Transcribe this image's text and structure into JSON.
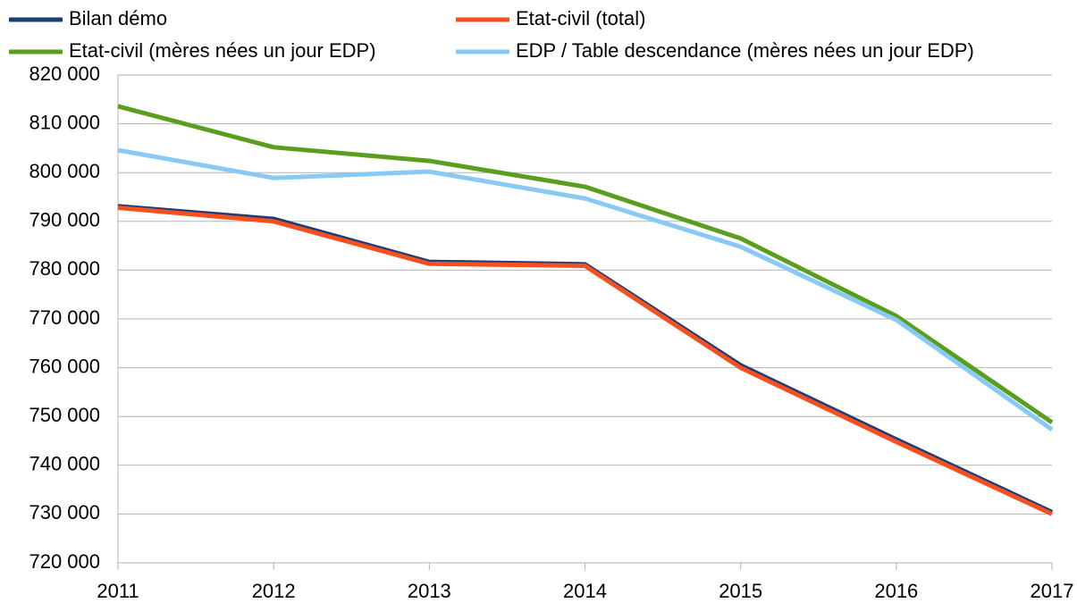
{
  "chart_data": {
    "type": "line",
    "categories": [
      "2011",
      "2012",
      "2013",
      "2014",
      "2015",
      "2016",
      "2017"
    ],
    "series": [
      {
        "name": "Bilan démo",
        "color": "#1c3d7a",
        "values": [
          793100,
          790500,
          781700,
          781200,
          760500,
          745300,
          730400
        ]
      },
      {
        "name": "Etat-civil (total)",
        "color": "#f5501e",
        "values": [
          792800,
          790000,
          781300,
          780900,
          760000,
          744800,
          730000
        ]
      },
      {
        "name": "Etat-civil (mères nées un jour EDP)",
        "color": "#5a9e1f",
        "values": [
          813600,
          805200,
          802400,
          797100,
          786500,
          770600,
          748800
        ]
      },
      {
        "name": "EDP / Table descendance (mères nées un jour EDP)",
        "color": "#88c9f5",
        "values": [
          804600,
          798900,
          800200,
          794700,
          784800,
          769800,
          747300
        ]
      }
    ],
    "ylim": [
      720000,
      820000
    ],
    "yticks": [
      {
        "value": 720000,
        "label": "720 000"
      },
      {
        "value": 730000,
        "label": "730 000"
      },
      {
        "value": 740000,
        "label": "740 000"
      },
      {
        "value": 750000,
        "label": "750 000"
      },
      {
        "value": 760000,
        "label": "760 000"
      },
      {
        "value": 770000,
        "label": "770 000"
      },
      {
        "value": 780000,
        "label": "780 000"
      },
      {
        "value": 790000,
        "label": "790 000"
      },
      {
        "value": 800000,
        "label": "800 000"
      },
      {
        "value": 810000,
        "label": "810 000"
      },
      {
        "value": 820000,
        "label": "820 000"
      }
    ],
    "grid": true
  }
}
